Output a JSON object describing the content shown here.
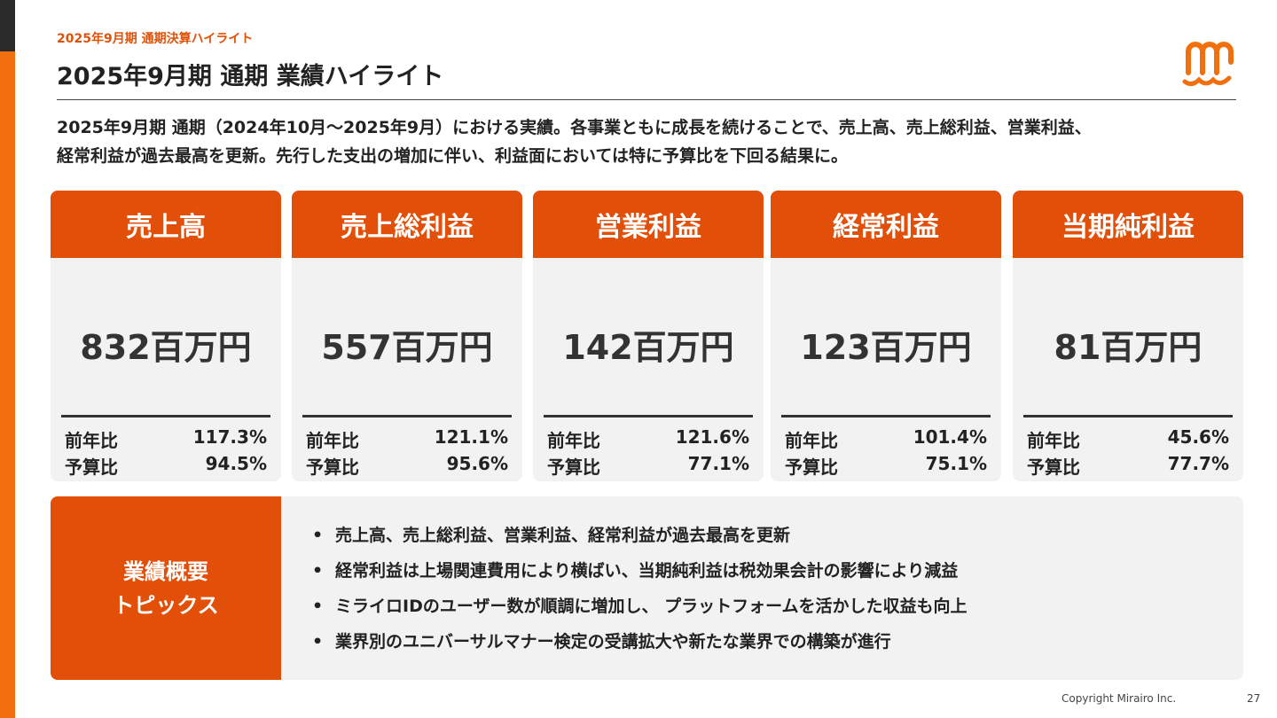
{
  "header": {
    "section_label": "2025年9月期  通期決算ハイライト",
    "title": "2025年9月期 通期 業績ハイライト"
  },
  "lead": {
    "line1": "2025年9月期 通期（2024年10月～2025年9月）における実績。各事業ともに成長を続けることで、売上高、売上総利益、営業利益、",
    "line2": "経常利益が過去最高を更新。先行した支出の増加に伴い、利益面においては特に予算比を下回る結果に。"
  },
  "cards": [
    {
      "title": "売上高",
      "value": "832百万円",
      "yoy_label": "前年比",
      "yoy": "117.3%",
      "budget_label": "予算比",
      "budget": "94.5%"
    },
    {
      "title": "売上総利益",
      "value": "557百万円",
      "yoy_label": "前年比",
      "yoy": "121.1%",
      "budget_label": "予算比",
      "budget": "95.6%"
    },
    {
      "title": "営業利益",
      "value": "142百万円",
      "yoy_label": "前年比",
      "yoy": "121.6%",
      "budget_label": "予算比",
      "budget": "77.1%"
    },
    {
      "title": "経常利益",
      "value": "123百万円",
      "yoy_label": "前年比",
      "yoy": "101.4%",
      "budget_label": "予算比",
      "budget": "75.1%"
    },
    {
      "title": "当期純利益",
      "value": "81百万円",
      "yoy_label": "前年比",
      "yoy": "45.6%",
      "budget_label": "予算比",
      "budget": "77.7%"
    }
  ],
  "topics": {
    "label_line1": "業績概要",
    "label_line2": "トピックス",
    "bullet": "•",
    "items": [
      "売上高、売上総利益、営業利益、経常利益が過去最高を更新",
      "経常利益は上場関連費用により横ばい、当期純利益は税効果会計の影響により減益",
      "ミライロIDのユーザー数が順調に増加し、 プラットフォームを活かした収益も向上",
      "業界別のユニバーサルマナー検定の受講拡大や新たな業界での構築が進行"
    ]
  },
  "footer": {
    "copyright": "Copyright Mirairo Inc.",
    "page": "27"
  },
  "colors": {
    "accent": "#e14f08",
    "side_bar": "#f26f0d",
    "card_bg": "#f2f2f2"
  },
  "logo": {
    "icon": "mirairo-logo-icon"
  }
}
